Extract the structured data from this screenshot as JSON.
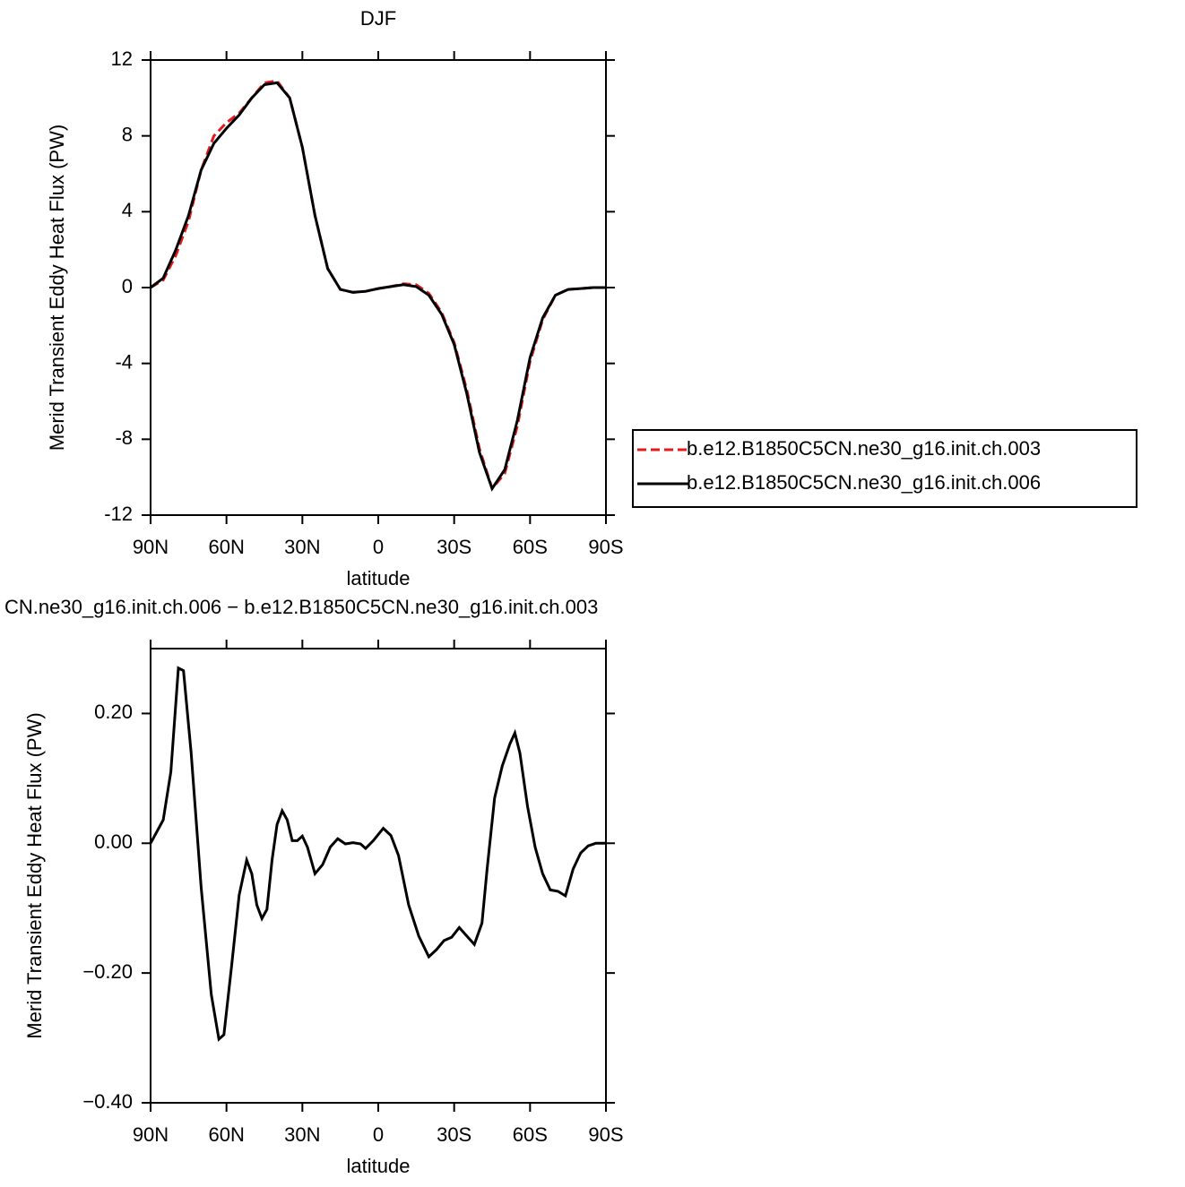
{
  "chart_data": [
    {
      "type": "line",
      "title": "DJF",
      "xlabel": "latitude",
      "ylabel": "Merid Transient Eddy Heat Flux (PW)",
      "x": [
        90,
        85,
        80,
        75,
        70,
        65,
        60,
        55,
        50,
        45,
        40,
        35,
        30,
        25,
        20,
        15,
        10,
        5,
        0,
        -5,
        -10,
        -15,
        -20,
        -25,
        -30,
        -35,
        -40,
        -45,
        -50,
        -55,
        -60,
        -65,
        -70,
        -75,
        -80,
        -85,
        -90
      ],
      "series": [
        {
          "name": "b.e12.B1850C5CN.ne30_g16.init.ch.003",
          "color": "#e41a1c",
          "linestyle": "dashed",
          "values": [
            0,
            0.4,
            1.7,
            3.5,
            6.2,
            8.0,
            8.7,
            9.2,
            10.0,
            10.8,
            10.9,
            10.0,
            7.4,
            3.8,
            1.0,
            -0.1,
            -0.25,
            -0.2,
            -0.05,
            0.05,
            0.2,
            0.15,
            -0.3,
            -1.3,
            -2.9,
            -5.4,
            -8.5,
            -10.6,
            -9.8,
            -7.3,
            -3.9,
            -1.7,
            -0.4,
            -0.1,
            -0.05,
            0,
            0
          ]
        },
        {
          "name": "b.e12.B1850C5CN.ne30_g16.init.ch.006",
          "color": "#000000",
          "linestyle": "solid",
          "values": [
            0,
            0.5,
            2.0,
            3.8,
            6.2,
            7.6,
            8.4,
            9.1,
            10.0,
            10.7,
            10.8,
            10.0,
            7.4,
            3.8,
            1.0,
            -0.1,
            -0.25,
            -0.2,
            -0.05,
            0.05,
            0.15,
            0.05,
            -0.4,
            -1.4,
            -3.0,
            -5.6,
            -8.7,
            -10.6,
            -9.6,
            -7.0,
            -3.7,
            -1.6,
            -0.4,
            -0.1,
            -0.05,
            0,
            0
          ]
        }
      ],
      "xlim": [
        90,
        -90
      ],
      "xticks": [
        {
          "value": 90,
          "label": "90N"
        },
        {
          "value": 60,
          "label": "60N"
        },
        {
          "value": 30,
          "label": "30N"
        },
        0,
        {
          "value": -30,
          "label": "30S"
        },
        {
          "value": -60,
          "label": "60S"
        },
        {
          "value": -90,
          "label": "90S"
        }
      ],
      "ylim": [
        -12,
        12
      ],
      "yticks": [
        -12,
        -8,
        -4,
        0,
        4,
        8,
        12
      ],
      "legend": "right"
    },
    {
      "type": "line",
      "title": "CN.ne30_g16.init.ch.006 − b.e12.B1850C5CN.ne30_g16.init.ch.003",
      "xlabel": "latitude",
      "ylabel": "Merid Transient Eddy Heat Flux (PW)",
      "x": [
        90,
        85,
        82,
        79,
        77,
        74,
        70,
        66,
        63,
        61,
        58,
        55,
        52,
        50,
        48,
        46,
        44,
        42,
        40,
        38,
        36,
        34,
        32,
        30,
        28,
        25,
        22,
        19,
        16,
        13,
        10,
        7,
        5,
        2,
        -2,
        -5,
        -8,
        -12,
        -16,
        -20,
        -23,
        -26,
        -29,
        -32,
        -35,
        -38,
        -41,
        -43,
        -46,
        -49,
        -52,
        -54,
        -56,
        -59,
        -62,
        -65,
        -68,
        -71,
        -74,
        -77,
        -80,
        -83,
        -86,
        -90
      ],
      "series": [
        {
          "color": "#000000",
          "linestyle": "solid",
          "values": [
            0,
            0.036,
            0.11,
            0.27,
            0.266,
            0.14,
            -0.068,
            -0.233,
            -0.302,
            -0.295,
            -0.19,
            -0.08,
            -0.026,
            -0.047,
            -0.095,
            -0.116,
            -0.102,
            -0.026,
            0.029,
            0.05,
            0.036,
            0.004,
            0.004,
            0.011,
            -0.006,
            -0.047,
            -0.033,
            -0.006,
            0.007,
            -0.001,
            0.001,
            -0.001,
            -0.008,
            0.004,
            0.023,
            0.012,
            -0.019,
            -0.095,
            -0.143,
            -0.175,
            -0.164,
            -0.15,
            -0.145,
            -0.13,
            -0.143,
            -0.156,
            -0.123,
            -0.04,
            0.07,
            0.119,
            0.153,
            0.17,
            0.139,
            0.057,
            -0.006,
            -0.047,
            -0.072,
            -0.074,
            -0.081,
            -0.04,
            -0.015,
            -0.004,
            0,
            0
          ]
        }
      ],
      "xlim": [
        90,
        -90
      ],
      "xticks": [
        {
          "value": 90,
          "label": "90N"
        },
        {
          "value": 60,
          "label": "60N"
        },
        {
          "value": 30,
          "label": "30N"
        },
        0,
        {
          "value": -30,
          "label": "30S"
        },
        {
          "value": -60,
          "label": "60S"
        },
        {
          "value": -90,
          "label": "90S"
        }
      ],
      "ylim": [
        -0.4,
        0.3
      ],
      "yticks": [
        {
          "value": -0.4,
          "label": "−0.40"
        },
        {
          "value": -0.2,
          "label": "−0.20"
        },
        {
          "value": 0,
          "label": "0.00"
        },
        {
          "value": 0.2,
          "label": "0.20"
        }
      ]
    }
  ]
}
